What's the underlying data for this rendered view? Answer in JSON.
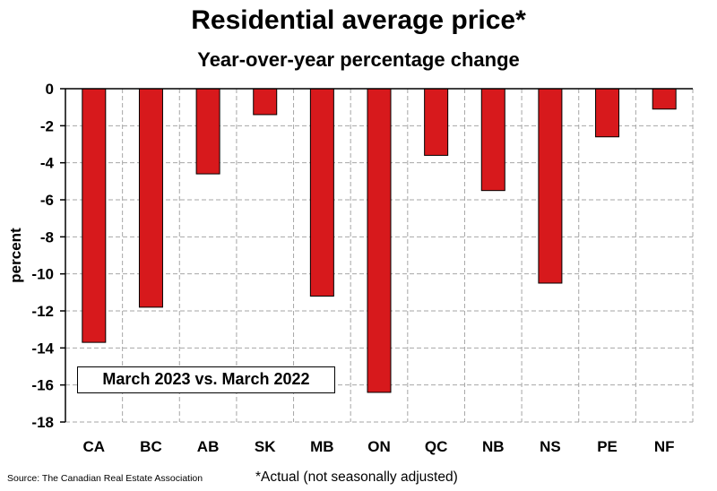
{
  "chart_data": {
    "type": "bar",
    "title": "Residential average price*",
    "subtitle": "Year-over-year percentage change",
    "ylabel": "percent",
    "xlabel": "",
    "categories": [
      "CA",
      "BC",
      "AB",
      "SK",
      "MB",
      "ON",
      "QC",
      "NB",
      "NS",
      "PE",
      "NF"
    ],
    "values": [
      -13.7,
      -11.8,
      -4.6,
      -1.4,
      -11.2,
      -16.4,
      -3.6,
      -5.5,
      -10.5,
      -2.6,
      -1.1
    ],
    "ylim": [
      -18,
      0
    ],
    "yticks": [
      "0",
      "-2",
      "-4",
      "-6",
      "-8",
      "-10",
      "-12",
      "-14",
      "-16",
      "-18"
    ],
    "ytick_values": [
      0,
      -2,
      -4,
      -6,
      -8,
      -10,
      -12,
      -14,
      -16,
      -18
    ],
    "grid": true,
    "bar_color": "#d7191c",
    "annotation": "March 2023 vs. March 2022"
  },
  "footer": {
    "source": "Source: The Canadian Real Estate Association",
    "footnote": "*Actual (not seasonally adjusted)"
  }
}
